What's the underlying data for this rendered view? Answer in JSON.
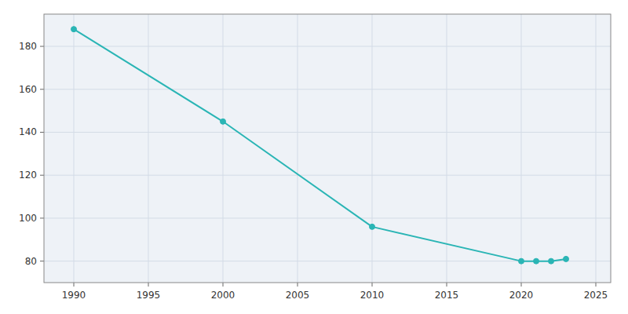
{
  "chart_data": {
    "type": "line",
    "x": [
      1990,
      2000,
      2010,
      2020,
      2021,
      2022,
      2023
    ],
    "values": [
      188,
      145,
      96,
      80,
      80,
      80,
      81
    ],
    "color": "#2ab5b5",
    "marker": "circle",
    "xlim": [
      1988,
      2026
    ],
    "ylim": [
      70,
      195
    ],
    "xticks": [
      1990,
      1995,
      2000,
      2005,
      2010,
      2015,
      2020,
      2025
    ],
    "yticks": [
      80,
      100,
      120,
      140,
      160,
      180
    ],
    "grid": true
  }
}
